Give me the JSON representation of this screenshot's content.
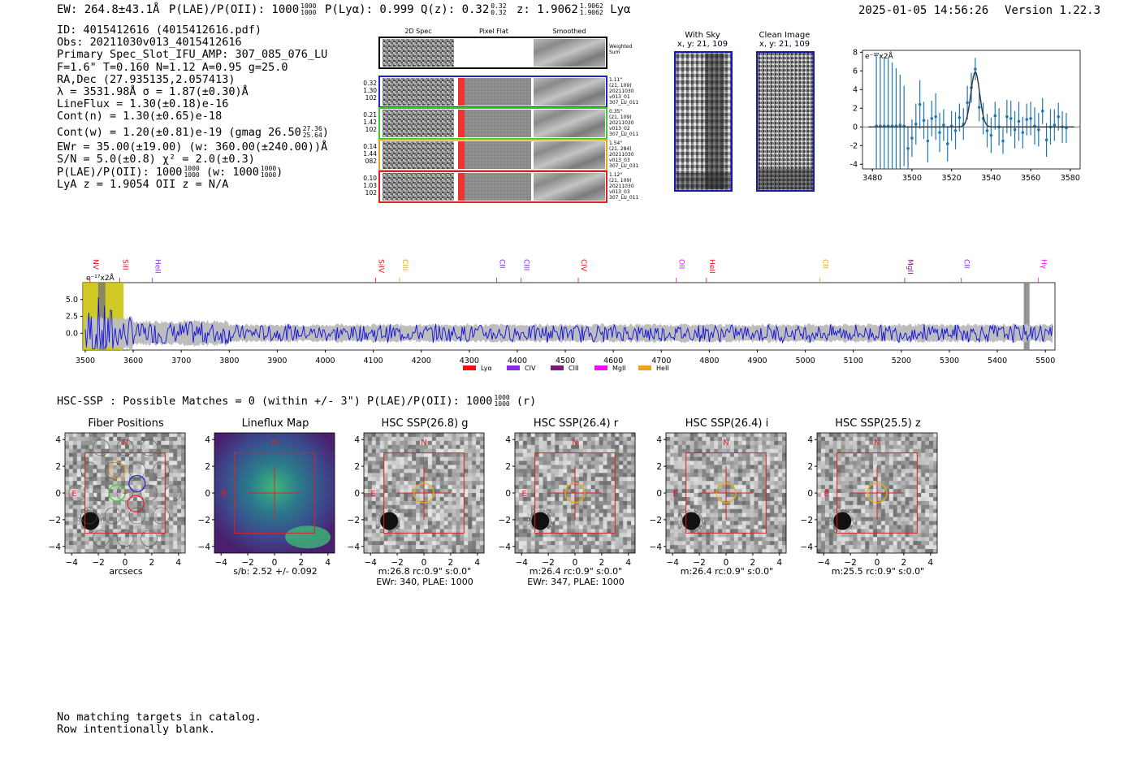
{
  "header": {
    "ew": "EW: 264.8±43.1Å",
    "plae_label": "P(LAE)/P(OII): 1000",
    "plae_hi": "1000",
    "plae_lo": "1000",
    "plya": "P(Lyα): 0.999",
    "qz_label": "Q(z): 0.32",
    "qz_hi": "0.32",
    "qz_lo": "0.32",
    "z_label": "z: 1.9062",
    "z_hi": "1.9062",
    "z_lo": "1.9062",
    "line": "Lyα",
    "timestamp": "2025-01-05 14:56:26",
    "version": "Version 1.22.3"
  },
  "info": {
    "id": "ID: 4015412616 (4015412616.pdf)",
    "obs": "Obs: 20211030v013_4015412616",
    "primary": "Primary Spec_Slot_IFU_AMP: 307_085_076_LU",
    "fwhm": "F=1.6\"  T=0.160  N=1.12  A=0.95  g=25.0",
    "radec": "RA,Dec (27.935135,2.057413)",
    "lambda": "λ = 3531.98Å   σ = 1.87(±0.30)Å",
    "lineflux": "LineFlux = 1.30(±0.18)e-16",
    "contn": "Cont(n) = 1.30(±0.65)e-18",
    "contw": "Cont(w) = 1.20(±0.81)e-19 (gmag 26.50",
    "contw_hi": "27.36",
    "contw_lo": "25.64",
    "contw_end": ")",
    "ewr": "EWr = 35.00(±19.00) (w: 360.00(±240.00))Å",
    "sn": "S/N = 5.0(±0.8)  χ² = 2.0(±0.3)",
    "plae": "P(LAE)/P(OII): 1000",
    "plae_hi": "1000",
    "plae_lo": "1000",
    "plae_w": "(w: 1000",
    "plae_w_hi": "1000",
    "plae_w_lo": "1000",
    "plae_w_end": ")",
    "lya": "LyA z = 1.9054   OII z = N/A"
  },
  "cutouts": {
    "col_titles": [
      "2D Spec",
      "Pixel Flat",
      "Smoothed"
    ],
    "weighted": "Weighted Sum",
    "rows": [
      {
        "labels": [
          "0.32",
          "1.30",
          "102"
        ],
        "meta": [
          "1.11\"",
          "(21, 109)",
          "20211030",
          "v013_01",
          "307_LU_011"
        ],
        "color": "#2222cc"
      },
      {
        "labels": [
          "0.21",
          "1.42",
          "102"
        ],
        "meta": [
          "0.35\"",
          "(21, 109)",
          "20211030",
          "v013_02",
          "307_LU_011"
        ],
        "color": "#33cc33"
      },
      {
        "labels": [
          "0.14",
          "1.44",
          "082"
        ],
        "meta": [
          "1.54\"",
          "(21, 284)",
          "20211030",
          "v013_03",
          "307_LU_031"
        ],
        "color": "#f0a020"
      },
      {
        "labels": [
          "0.10",
          "1.03",
          "102"
        ],
        "meta": [
          "1.12\"",
          "(21, 109)",
          "20211030",
          "v013_03",
          "307_LU_011"
        ],
        "color": "#dd2222"
      }
    ]
  },
  "images": {
    "with_sky_title": "With Sky",
    "with_sky_sub": "x, y: 21, 109",
    "clean_title": "Clean Image",
    "clean_sub": "x, y: 21, 109"
  },
  "zoom_spec": {
    "unit": "e⁻¹⁷x2Å"
  },
  "full_spec": {
    "unit": "e⁻¹⁷x2Å",
    "legend": [
      {
        "label": "Lyα",
        "color": "#ee1111"
      },
      {
        "label": "CIV",
        "color": "#8a2be2"
      },
      {
        "label": "CIII",
        "color": "#7a1a7a"
      },
      {
        "label": "MgII",
        "color": "#ee11ee"
      },
      {
        "label": "HeII",
        "color": "#f0a020"
      }
    ],
    "lines": [
      {
        "label": "NV",
        "wave": 3510,
        "color": "#ee1111"
      },
      {
        "label": "SiII",
        "wave": 3572,
        "color": "#ee1111"
      },
      {
        "label": "HeII",
        "wave": 3640,
        "color": "#8a2be2"
      },
      {
        "label": "SiIV",
        "wave": 4105,
        "color": "#ee1111"
      },
      {
        "label": "CIII",
        "wave": 4155,
        "color": "#f0a020"
      },
      {
        "label": "CII",
        "wave": 4357,
        "color": "#8a2be2"
      },
      {
        "label": "CIII",
        "wave": 4408,
        "color": "#8a2be2"
      },
      {
        "label": "CIV",
        "wave": 4527,
        "color": "#ee1111"
      },
      {
        "label": "OII",
        "wave": 4731,
        "color": "#ee11ee"
      },
      {
        "label": "HeII",
        "wave": 4794,
        "color": "#ee1111"
      },
      {
        "label": "CII",
        "wave": 5030,
        "color": "#f0a020"
      },
      {
        "label": "MgII",
        "wave": 5207,
        "color": "#7a1a7a"
      },
      {
        "label": "CII",
        "wave": 5325,
        "color": "#8a2be2"
      },
      {
        "label": "Hγ",
        "wave": 5485,
        "color": "#ee11ee"
      }
    ]
  },
  "hsc": {
    "summary": "HSC-SSP : Possible Matches = 0 (within +/- 3\")  P(LAE)/P(OII): 1000",
    "summary_hi": "1000",
    "summary_lo": "1000",
    "summary_end": "(r)",
    "panels": [
      {
        "title": "Fiber Positions",
        "cap1": "arcsecs",
        "cap2": ""
      },
      {
        "title": "Lineflux Map",
        "cap1": "s/b: 2.52 +/- 0.092",
        "cap2": ""
      },
      {
        "title": "HSC SSP(26.8) g",
        "cap1": "m:26.8 rc:0.9\"  s:0.0\"",
        "cap2": "EWr: 340, PLAE: 1000"
      },
      {
        "title": "HSC SSP(26.4) r",
        "cap1": "m:26.4 rc:0.9\"  s:0.0\"",
        "cap2": "EWr: 347, PLAE: 1000"
      },
      {
        "title": "HSC SSP(26.4) i",
        "cap1": "m:26.4 rc:0.9\"  s:0.0\"",
        "cap2": ""
      },
      {
        "title": "HSC SSP(25.5) z",
        "cap1": "m:25.5 rc:0.9\"  s:0.0\"",
        "cap2": ""
      }
    ],
    "ticks": [
      "4",
      "2",
      "0",
      "−2",
      "−4"
    ],
    "xticks": [
      "−4",
      "−2",
      "0",
      "2",
      "4"
    ],
    "north": "N",
    "east": "E"
  },
  "footer": {
    "line1": "No matching targets in catalog.",
    "line2": "Row intentionally blank."
  },
  "chart_data": [
    {
      "type": "scatter",
      "title": "",
      "xlabel": "",
      "ylabel": "e⁻¹⁷x2Å",
      "xlim": [
        3475,
        3585
      ],
      "ylim": [
        -4.5,
        8.2
      ],
      "xticks": [
        3480,
        3500,
        3520,
        3540,
        3560,
        3580
      ],
      "yticks": [
        -4,
        -2,
        0,
        2,
        4,
        6,
        8
      ],
      "x": [
        3482,
        3484,
        3486,
        3488,
        3490,
        3492,
        3494,
        3496,
        3498,
        3500,
        3502,
        3504,
        3506,
        3508,
        3510,
        3512,
        3514,
        3516,
        3518,
        3520,
        3522,
        3524,
        3526,
        3528,
        3530,
        3532,
        3534,
        3536,
        3538,
        3540,
        3542,
        3544,
        3546,
        3548,
        3550,
        3552,
        3554,
        3556,
        3558,
        3560,
        3562,
        3564,
        3566,
        3568,
        3570,
        3572,
        3574,
        3576,
        3578
      ],
      "y": [
        0.1,
        0.1,
        0.1,
        0.1,
        0.1,
        0.1,
        0.2,
        0.1,
        -2.3,
        -1.2,
        0.3,
        2.4,
        0.7,
        -1.5,
        0.9,
        1.1,
        -0.6,
        0.2,
        -1.8,
        0.1,
        -0.4,
        1.0,
        0.3,
        2.6,
        4.2,
        6.2,
        2.1,
        0.9,
        -0.4,
        -0.9,
        1.2,
        0.0,
        -1.5,
        1.1,
        0.9,
        -0.3,
        0.6,
        -0.6,
        0.8,
        0.9,
        0.1,
        -0.3,
        1.7,
        -1.4,
        0.0,
        0.2,
        1.1,
        0.0,
        -0.1
      ],
      "yerr": [
        7.8,
        7.6,
        7.4,
        7.2,
        6.8,
        6.2,
        5.4,
        4.3,
        2.4,
        2.0,
        2.2,
        2.6,
        2.0,
        2.3,
        1.9,
        2.5,
        2.1,
        1.7,
        1.9,
        1.6,
        2.0,
        1.5,
        1.7,
        1.8,
        1.6,
        1.2,
        1.5,
        1.7,
        1.8,
        1.9,
        1.5,
        2.0,
        1.4,
        1.8,
        1.9,
        2.0,
        2.1,
        1.7,
        1.7,
        1.8,
        2.0,
        1.8,
        1.4,
        1.8,
        1.9,
        1.7,
        1.5,
        1.7,
        1.6
      ],
      "fit_peak": {
        "center": 3532,
        "amplitude": 5.9,
        "sigma": 1.87
      },
      "color": "#1f77b4"
    },
    {
      "type": "line",
      "title": "",
      "xlabel": "",
      "ylabel": "e⁻¹⁷x2Å",
      "xlim": [
        3495,
        5520
      ],
      "ylim": [
        -2.5,
        7.5
      ],
      "xticks": [
        3500,
        3600,
        3700,
        3800,
        3900,
        4000,
        4100,
        4200,
        4300,
        4400,
        4500,
        4600,
        4700,
        4800,
        4900,
        5000,
        5100,
        5200,
        5300,
        5400,
        5500
      ],
      "yticks": [
        0.0,
        2.5,
        5.0
      ],
      "series": [
        {
          "values": "noise spectrum around 0 with error envelope ~1.2",
          "color": "#1010dd"
        }
      ],
      "highlight_band": [
        3495,
        3580
      ],
      "grid": false
    }
  ]
}
